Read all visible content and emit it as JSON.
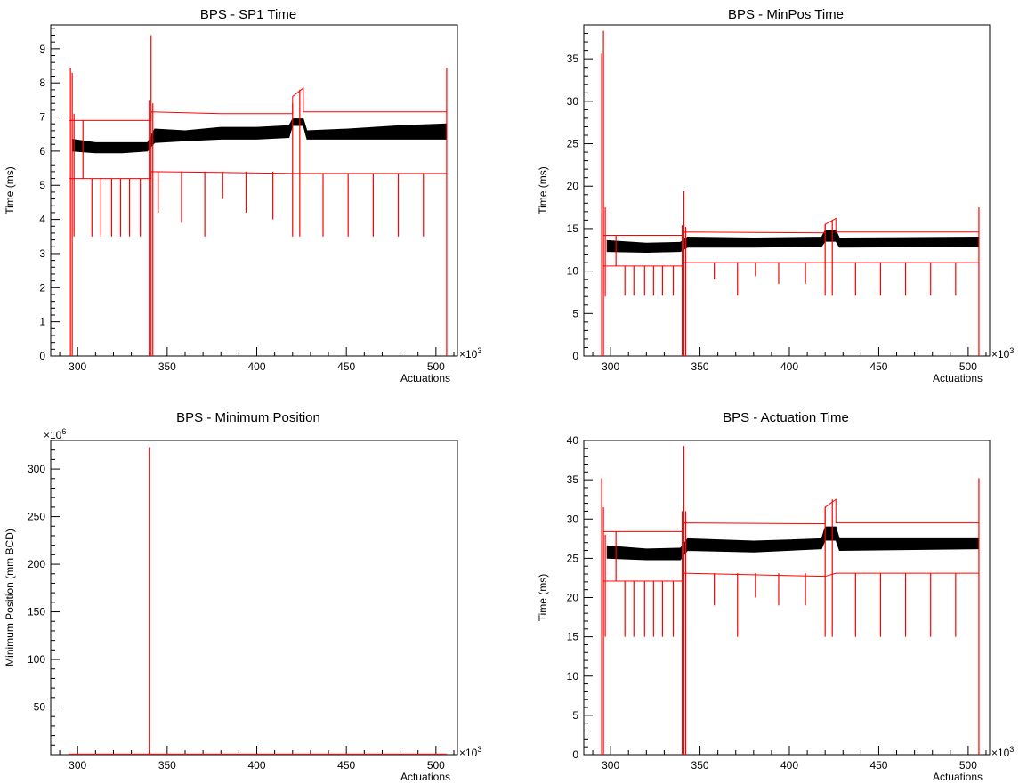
{
  "chart_data": [
    {
      "type": "scatter",
      "title": "BPS - SP1 Time",
      "xlabel": "Actuations",
      "ylabel": "Time (ms)",
      "x_multiplier": "×10",
      "x_multiplier_exp": "3",
      "y_multiplier": "",
      "y_multiplier_exp": "",
      "xlim": [
        285,
        512
      ],
      "ylim": [
        0,
        9.7
      ],
      "xticks": [
        300,
        350,
        400,
        450,
        500
      ],
      "yticks": [
        0,
        1,
        2,
        3,
        4,
        5,
        6,
        7,
        8,
        9
      ],
      "colors": {
        "data": "#000000",
        "limits": "#ff0000"
      },
      "data_band": [
        {
          "x": 297,
          "y_low": 6.0,
          "y_high": 6.35
        },
        {
          "x": 310,
          "y_low": 5.95,
          "y_high": 6.25
        },
        {
          "x": 325,
          "y_low": 5.95,
          "y_high": 6.25
        },
        {
          "x": 339,
          "y_low": 6.0,
          "y_high": 6.25
        },
        {
          "x": 343,
          "y_low": 6.25,
          "y_high": 6.65
        },
        {
          "x": 360,
          "y_low": 6.3,
          "y_high": 6.6
        },
        {
          "x": 380,
          "y_low": 6.35,
          "y_high": 6.7
        },
        {
          "x": 400,
          "y_low": 6.35,
          "y_high": 6.7
        },
        {
          "x": 418,
          "y_low": 6.4,
          "y_high": 6.75
        },
        {
          "x": 420,
          "y_low": 6.75,
          "y_high": 6.95
        },
        {
          "x": 426,
          "y_low": 6.75,
          "y_high": 6.95
        },
        {
          "x": 428,
          "y_low": 6.35,
          "y_high": 6.6
        },
        {
          "x": 450,
          "y_low": 6.35,
          "y_high": 6.65
        },
        {
          "x": 480,
          "y_low": 6.35,
          "y_high": 6.75
        },
        {
          "x": 506,
          "y_low": 6.35,
          "y_high": 6.8
        }
      ],
      "upper_limit": [
        [
          295,
          6.9
        ],
        [
          341,
          6.9
        ],
        [
          341,
          7.15
        ],
        [
          380,
          7.1
        ],
        [
          420,
          7.1
        ],
        [
          420,
          7.6
        ],
        [
          426,
          7.85
        ],
        [
          426,
          7.15
        ],
        [
          506,
          7.15
        ]
      ],
      "lower_limit": [
        [
          295,
          5.2
        ],
        [
          341,
          5.2
        ],
        [
          341,
          5.4
        ],
        [
          420,
          5.35
        ],
        [
          426,
          5.35
        ],
        [
          506,
          5.35
        ]
      ],
      "spikes": [
        [
          296,
          0,
          8.45
        ],
        [
          297,
          0,
          8.3
        ],
        [
          298,
          3.5,
          7.1
        ],
        [
          303,
          5.2,
          6.9
        ],
        [
          308,
          3.5,
          5.2
        ],
        [
          313,
          3.5,
          5.2
        ],
        [
          319,
          3.5,
          5.2
        ],
        [
          324,
          3.5,
          5.2
        ],
        [
          329,
          3.5,
          5.2
        ],
        [
          335,
          3.5,
          5.2
        ],
        [
          340,
          0,
          7.5
        ],
        [
          341,
          0,
          9.4
        ],
        [
          342,
          0,
          7.4
        ],
        [
          345,
          4.2,
          5.4
        ],
        [
          358,
          3.9,
          5.4
        ],
        [
          371,
          3.5,
          5.4
        ],
        [
          381,
          4.6,
          5.4
        ],
        [
          394,
          4.2,
          5.4
        ],
        [
          409,
          4.0,
          5.4
        ],
        [
          420,
          3.5,
          7.4
        ],
        [
          424,
          3.5,
          7.8
        ],
        [
          437,
          3.5,
          5.35
        ],
        [
          451,
          3.5,
          5.35
        ],
        [
          465,
          3.5,
          5.35
        ],
        [
          479,
          3.5,
          5.35
        ],
        [
          493,
          3.5,
          5.35
        ],
        [
          506,
          0,
          8.45
        ]
      ]
    },
    {
      "type": "scatter",
      "title": "BPS - MinPos Time",
      "xlabel": "Actuations",
      "ylabel": "Time (ms)",
      "x_multiplier": "×10",
      "x_multiplier_exp": "3",
      "y_multiplier": "",
      "y_multiplier_exp": "",
      "xlim": [
        285,
        512
      ],
      "ylim": [
        0,
        39
      ],
      "xticks": [
        300,
        350,
        400,
        450,
        500
      ],
      "yticks": [
        0,
        5,
        10,
        15,
        20,
        25,
        30,
        35
      ],
      "colors": {
        "data": "#000000",
        "limits": "#ff0000"
      },
      "data_band": [
        {
          "x": 298,
          "y_low": 12.3,
          "y_high": 13.6
        },
        {
          "x": 320,
          "y_low": 12.2,
          "y_high": 13.3
        },
        {
          "x": 339,
          "y_low": 12.3,
          "y_high": 13.4
        },
        {
          "x": 343,
          "y_low": 12.8,
          "y_high": 14.0
        },
        {
          "x": 380,
          "y_low": 12.8,
          "y_high": 13.9
        },
        {
          "x": 418,
          "y_low": 12.9,
          "y_high": 14.0
        },
        {
          "x": 420,
          "y_low": 13.5,
          "y_high": 14.8
        },
        {
          "x": 426,
          "y_low": 13.5,
          "y_high": 14.8
        },
        {
          "x": 428,
          "y_low": 12.8,
          "y_high": 13.9
        },
        {
          "x": 506,
          "y_low": 12.9,
          "y_high": 14.0
        }
      ],
      "upper_limit": [
        [
          296,
          14.2
        ],
        [
          341,
          14.2
        ],
        [
          341,
          14.6
        ],
        [
          420,
          14.5
        ],
        [
          420,
          15.5
        ],
        [
          426,
          16.2
        ],
        [
          426,
          14.6
        ],
        [
          506,
          14.6
        ]
      ],
      "lower_limit": [
        [
          296,
          10.6
        ],
        [
          341,
          10.6
        ],
        [
          341,
          11.0
        ],
        [
          420,
          11.0
        ],
        [
          426,
          11.0
        ],
        [
          506,
          11.0
        ]
      ],
      "spikes": [
        [
          295,
          0,
          35.6
        ],
        [
          296,
          0,
          38.3
        ],
        [
          297,
          7.0,
          17.5
        ],
        [
          303,
          10.6,
          14.2
        ],
        [
          308,
          7.1,
          10.6
        ],
        [
          313,
          7.1,
          10.6
        ],
        [
          319,
          7.1,
          10.6
        ],
        [
          324,
          7.1,
          10.6
        ],
        [
          329,
          7.1,
          10.6
        ],
        [
          335,
          7.1,
          10.6
        ],
        [
          340,
          0,
          15.4
        ],
        [
          341,
          0,
          19.4
        ],
        [
          342,
          0,
          15.2
        ],
        [
          358,
          9.0,
          11.0
        ],
        [
          371,
          7.1,
          11.0
        ],
        [
          381,
          9.4,
          11.0
        ],
        [
          394,
          8.5,
          11.0
        ],
        [
          409,
          8.5,
          11.0
        ],
        [
          420,
          7.1,
          15.5
        ],
        [
          424,
          7.1,
          16.0
        ],
        [
          437,
          7.1,
          11.0
        ],
        [
          451,
          7.1,
          11.0
        ],
        [
          465,
          7.1,
          11.0
        ],
        [
          479,
          7.1,
          11.0
        ],
        [
          493,
          7.1,
          11.0
        ],
        [
          506,
          0,
          17.5
        ]
      ]
    },
    {
      "type": "line",
      "title": "BPS - Minimum Position",
      "xlabel": "Actuations",
      "ylabel": "Minimum Position (mm BCD)",
      "x_multiplier": "×10",
      "x_multiplier_exp": "3",
      "y_multiplier": "×10",
      "y_multiplier_exp": "6",
      "xlim": [
        285,
        512
      ],
      "ylim": [
        0,
        330
      ],
      "xticks": [
        300,
        350,
        400,
        450,
        500
      ],
      "yticks": [
        50,
        100,
        150,
        200,
        250,
        300
      ],
      "colors": {
        "data": "#000000",
        "limits": "#ff0000"
      },
      "data_band": [],
      "upper_limit": [
        [
          295,
          0.6
        ],
        [
          506,
          0.6
        ]
      ],
      "lower_limit": [
        [
          295,
          0.2
        ],
        [
          506,
          0.2
        ]
      ],
      "spikes": [
        [
          340,
          0,
          323
        ]
      ]
    },
    {
      "type": "scatter",
      "title": "BPS - Actuation Time",
      "xlabel": "Actuations",
      "ylabel": "Time (ms)",
      "x_multiplier": "×10",
      "x_multiplier_exp": "3",
      "y_multiplier": "",
      "y_multiplier_exp": "",
      "xlim": [
        285,
        512
      ],
      "ylim": [
        0,
        40
      ],
      "xticks": [
        300,
        350,
        400,
        450,
        500
      ],
      "yticks": [
        0,
        5,
        10,
        15,
        20,
        25,
        30,
        35,
        40
      ],
      "colors": {
        "data": "#000000",
        "limits": "#ff0000"
      },
      "data_band": [
        {
          "x": 298,
          "y_low": 25.0,
          "y_high": 26.6
        },
        {
          "x": 320,
          "y_low": 24.8,
          "y_high": 26.2
        },
        {
          "x": 339,
          "y_low": 24.8,
          "y_high": 26.3
        },
        {
          "x": 343,
          "y_low": 26.0,
          "y_high": 27.5
        },
        {
          "x": 380,
          "y_low": 25.8,
          "y_high": 27.2
        },
        {
          "x": 418,
          "y_low": 26.2,
          "y_high": 27.5
        },
        {
          "x": 420,
          "y_low": 27.3,
          "y_high": 29.0
        },
        {
          "x": 426,
          "y_low": 27.3,
          "y_high": 29.0
        },
        {
          "x": 428,
          "y_low": 26.0,
          "y_high": 27.5
        },
        {
          "x": 506,
          "y_low": 26.2,
          "y_high": 27.5
        }
      ],
      "upper_limit": [
        [
          296,
          28.4
        ],
        [
          341,
          28.4
        ],
        [
          341,
          29.5
        ],
        [
          420,
          29.4
        ],
        [
          420,
          31.5
        ],
        [
          426,
          32.5
        ],
        [
          426,
          29.5
        ],
        [
          506,
          29.5
        ]
      ],
      "lower_limit": [
        [
          296,
          22.1
        ],
        [
          341,
          22.1
        ],
        [
          341,
          23.1
        ],
        [
          420,
          22.7
        ],
        [
          426,
          23.1
        ],
        [
          506,
          23.1
        ]
      ],
      "spikes": [
        [
          295,
          0,
          35.2
        ],
        [
          296,
          0,
          31.5
        ],
        [
          297,
          15.0,
          28.0
        ],
        [
          303,
          22.1,
          28.4
        ],
        [
          308,
          15.0,
          22.1
        ],
        [
          313,
          15.0,
          22.1
        ],
        [
          319,
          15.0,
          22.1
        ],
        [
          324,
          15.0,
          22.1
        ],
        [
          329,
          15.0,
          22.1
        ],
        [
          335,
          15.0,
          22.1
        ],
        [
          340,
          0,
          31.0
        ],
        [
          341,
          0,
          39.3
        ],
        [
          342,
          0,
          31.0
        ],
        [
          358,
          19.0,
          23.1
        ],
        [
          371,
          15.0,
          23.1
        ],
        [
          381,
          20.0,
          23.1
        ],
        [
          394,
          19.0,
          23.1
        ],
        [
          409,
          19.0,
          23.1
        ],
        [
          420,
          15.0,
          31.5
        ],
        [
          424,
          15.0,
          32.5
        ],
        [
          437,
          15.0,
          23.1
        ],
        [
          451,
          15.0,
          23.1
        ],
        [
          465,
          15.0,
          23.1
        ],
        [
          479,
          15.0,
          23.1
        ],
        [
          493,
          15.0,
          23.1
        ],
        [
          506,
          0,
          35.2
        ]
      ]
    }
  ]
}
